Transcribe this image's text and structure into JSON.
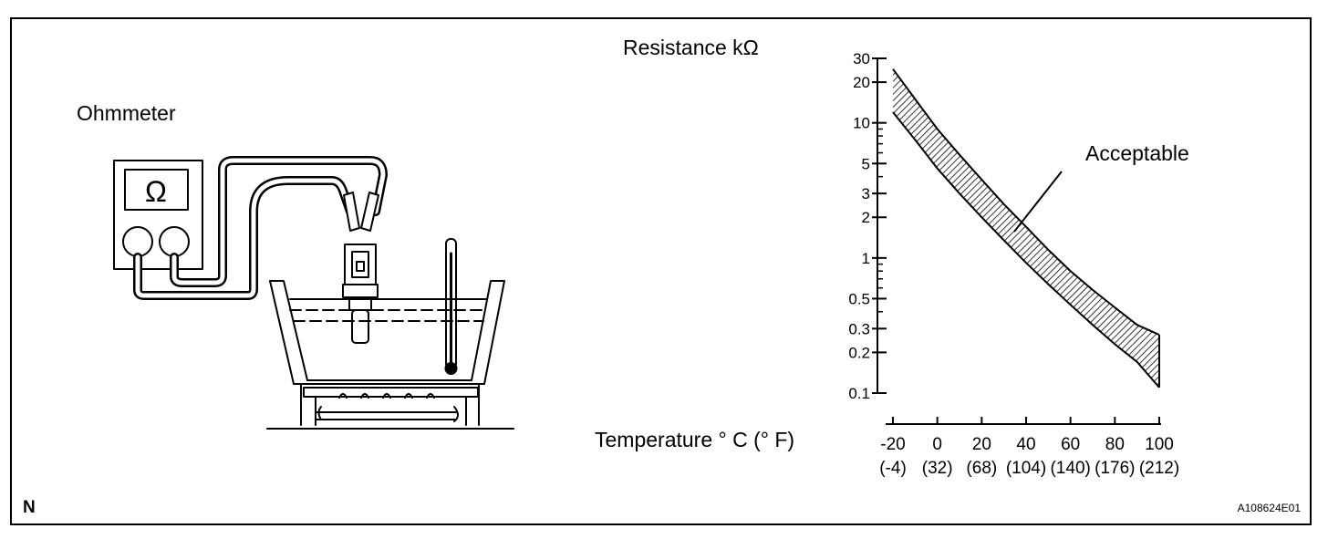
{
  "figure": {
    "ohmmeter_label": "Ohmmeter",
    "meter_symbol": "Ω",
    "corner_letter": "N",
    "figure_code": "A108624E01"
  },
  "chart_data": {
    "type": "area",
    "ylabel": "Resistance kΩ",
    "xlabel": "Temperature °C(°F)",
    "ylabel_display": "Resistance kΩ",
    "xlabel_display": "Temperature ° C (° F)",
    "y_scale": "log",
    "ylim": [
      0.1,
      30
    ],
    "y_ticks": [
      {
        "value": 30,
        "label": "30"
      },
      {
        "value": 20,
        "label": "20"
      },
      {
        "value": 10,
        "label": "10"
      },
      {
        "value": 5,
        "label": "5"
      },
      {
        "value": 3,
        "label": "3"
      },
      {
        "value": 2,
        "label": "2"
      },
      {
        "value": 1,
        "label": "1"
      },
      {
        "value": 0.5,
        "label": "0.5"
      },
      {
        "value": 0.3,
        "label": "0.3"
      },
      {
        "value": 0.2,
        "label": "0.2"
      },
      {
        "value": 0.1,
        "label": "0.1"
      }
    ],
    "xlim": [
      -20,
      100
    ],
    "x_ticks": [
      {
        "value": -20,
        "label": "-20",
        "label_f": "(-4)"
      },
      {
        "value": 0,
        "label": "0",
        "label_f": "(32)"
      },
      {
        "value": 20,
        "label": "20",
        "label_f": "(68)"
      },
      {
        "value": 40,
        "label": "40",
        "label_f": "(104)"
      },
      {
        "value": 60,
        "label": "60",
        "label_f": "(140)"
      },
      {
        "value": 80,
        "label": "80",
        "label_f": "(176)"
      },
      {
        "value": 100,
        "label": "100",
        "label_f": "(212)"
      }
    ],
    "band_label": "Acceptable",
    "band_upper": {
      "x": [
        -20,
        -10,
        0,
        10,
        20,
        30,
        40,
        50,
        60,
        70,
        80,
        90,
        100
      ],
      "y": [
        25,
        15,
        9,
        5.8,
        3.8,
        2.5,
        1.7,
        1.15,
        0.8,
        0.58,
        0.43,
        0.32,
        0.27
      ]
    },
    "band_lower": {
      "x": [
        -20,
        -10,
        0,
        10,
        20,
        30,
        40,
        50,
        60,
        70,
        80,
        90,
        100
      ],
      "y": [
        12,
        7.5,
        4.6,
        3.0,
        2.0,
        1.35,
        0.92,
        0.64,
        0.45,
        0.32,
        0.23,
        0.17,
        0.11
      ]
    }
  }
}
